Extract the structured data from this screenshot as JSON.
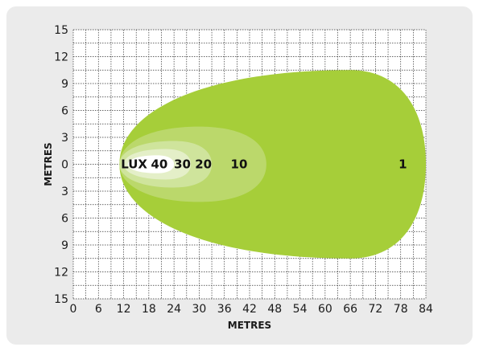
{
  "chart_data": {
    "type": "area",
    "title": "",
    "xlabel": "METRES",
    "ylabel": "METRES",
    "x_ticks": [
      "0",
      "6",
      "12",
      "18",
      "24",
      "30",
      "36",
      "42",
      "48",
      "54",
      "60",
      "66",
      "72",
      "78",
      "84"
    ],
    "y_ticks": [
      "15",
      "12",
      "9",
      "6",
      "3",
      "0",
      "3",
      "6",
      "9",
      "12",
      "15"
    ],
    "xlim": [
      0,
      84
    ],
    "ylim": [
      -15,
      15
    ],
    "grid": true,
    "lux_prefix": "LUX",
    "isolux_zones": [
      {
        "lux": "1",
        "x_start": 11,
        "x_end": 84,
        "half_width": 10.5,
        "peak_x": 66,
        "color": "#a6ce39"
      },
      {
        "lux": "10",
        "x_start": 11,
        "x_end": 46,
        "half_width": 4.2,
        "peak_x": 30,
        "color": "#bbd86b"
      },
      {
        "lux": "20",
        "x_start": 11,
        "x_end": 33,
        "half_width": 2.6,
        "peak_x": 24,
        "color": "#cfe49c"
      },
      {
        "lux": "30",
        "x_start": 12,
        "x_end": 28,
        "half_width": 1.7,
        "peak_x": 22,
        "color": "#e4efc8"
      },
      {
        "lux": "40",
        "x_start": 13,
        "x_end": 24,
        "half_width": 1.0,
        "peak_x": 20,
        "color": "#ffffff"
      }
    ],
    "label_positions": {
      "LUX": 14.5,
      "40": 20.5,
      "30": 26,
      "20": 31,
      "10": 39.5,
      "1": 78.5
    }
  }
}
